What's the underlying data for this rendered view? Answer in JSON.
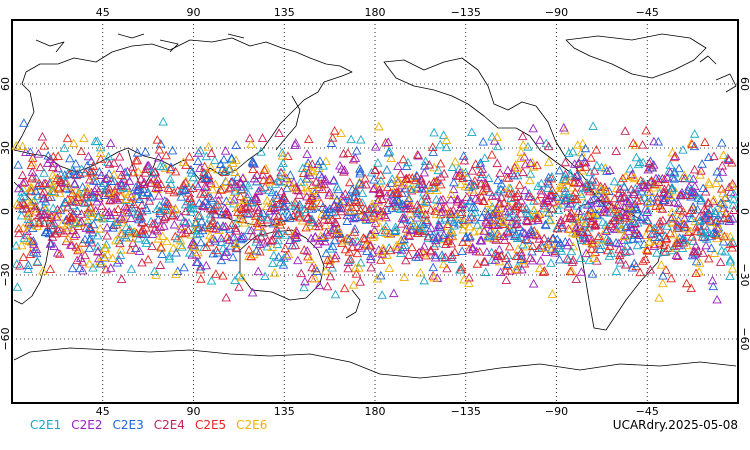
{
  "map": {
    "top_axis_labels": [
      "45",
      "90",
      "135",
      "180",
      "−135",
      "−90",
      "−45"
    ],
    "bottom_axis_labels": [
      "45",
      "90",
      "135",
      "180",
      "−135",
      "−90",
      "−45"
    ],
    "left_axis_labels": [
      "60",
      "30",
      "0",
      "−30",
      "−60"
    ],
    "right_axis_labels": [
      "60",
      "30",
      "0",
      "−30",
      "−60"
    ],
    "lon_range": [
      0,
      360
    ],
    "lat_range": [
      -90,
      90
    ],
    "grid": "dotted",
    "center_longitude": 180,
    "obs_lat_band": [
      -45,
      45
    ],
    "marker": "open-triangle"
  },
  "legend": {
    "items": [
      {
        "label": "C2E1",
        "color": "#1aa7c7"
      },
      {
        "label": "C2E2",
        "color": "#9a1fc0"
      },
      {
        "label": "C2E3",
        "color": "#1f64d6"
      },
      {
        "label": "C2E4",
        "color": "#c81e5a"
      },
      {
        "label": "C2E5",
        "color": "#e0281e"
      },
      {
        "label": "C2E6",
        "color": "#f0b000"
      }
    ]
  },
  "stamp": "UCARdry.2025-05-08"
}
